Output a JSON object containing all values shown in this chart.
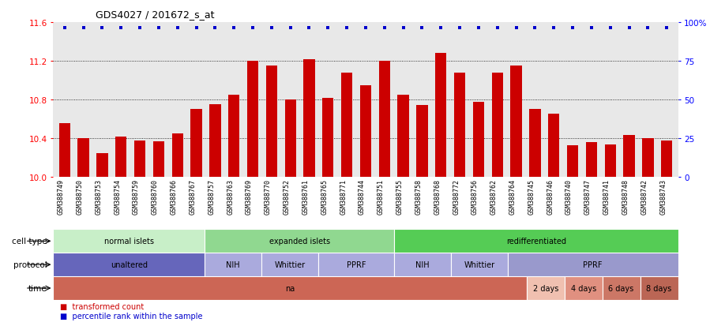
{
  "title": "GDS4027 / 201672_s_at",
  "samples": [
    "GSM388749",
    "GSM388750",
    "GSM388753",
    "GSM388754",
    "GSM388759",
    "GSM388760",
    "GSM388766",
    "GSM388767",
    "GSM388757",
    "GSM388763",
    "GSM388769",
    "GSM388770",
    "GSM388752",
    "GSM388761",
    "GSM388765",
    "GSM388771",
    "GSM388744",
    "GSM388751",
    "GSM388755",
    "GSM388758",
    "GSM388768",
    "GSM388772",
    "GSM388756",
    "GSM388762",
    "GSM388764",
    "GSM388745",
    "GSM388746",
    "GSM388740",
    "GSM388747",
    "GSM388741",
    "GSM388748",
    "GSM388742",
    "GSM388743"
  ],
  "bar_values": [
    10.56,
    10.4,
    10.25,
    10.42,
    10.38,
    10.37,
    10.45,
    10.7,
    10.75,
    10.85,
    11.2,
    11.15,
    10.8,
    11.22,
    10.82,
    11.08,
    10.95,
    11.2,
    10.85,
    10.74,
    11.28,
    11.08,
    10.78,
    11.08,
    11.15,
    10.7,
    10.65,
    10.33,
    10.36,
    10.34,
    10.43,
    10.4,
    10.38
  ],
  "bar_color": "#cc0000",
  "dot_color": "#0000cc",
  "ylim_left": [
    10.0,
    11.6
  ],
  "ylim_right": [
    0,
    100
  ],
  "yticks_left": [
    10.0,
    10.4,
    10.8,
    11.2,
    11.6
  ],
  "yticks_right": [
    0,
    25,
    50,
    75,
    100
  ],
  "ytick_labels_right": [
    "0",
    "25",
    "50",
    "75",
    "100%"
  ],
  "grid_values": [
    10.4,
    10.8,
    11.2
  ],
  "plot_bg_color": "#e8e8e8",
  "cell_type_row": {
    "label": "cell type",
    "groups": [
      {
        "text": "normal islets",
        "start": 0,
        "end": 8,
        "color": "#c8efc8"
      },
      {
        "text": "expanded islets",
        "start": 8,
        "end": 18,
        "color": "#90d890"
      },
      {
        "text": "redifferentiated",
        "start": 18,
        "end": 33,
        "color": "#55cc55"
      }
    ]
  },
  "protocol_row": {
    "label": "protocol",
    "groups": [
      {
        "text": "unaltered",
        "start": 0,
        "end": 8,
        "color": "#6666bb"
      },
      {
        "text": "NIH",
        "start": 8,
        "end": 11,
        "color": "#aaaadd"
      },
      {
        "text": "Whittier",
        "start": 11,
        "end": 14,
        "color": "#aaaadd"
      },
      {
        "text": "PPRF",
        "start": 14,
        "end": 18,
        "color": "#aaaadd"
      },
      {
        "text": "NIH",
        "start": 18,
        "end": 21,
        "color": "#aaaadd"
      },
      {
        "text": "Whittier",
        "start": 21,
        "end": 24,
        "color": "#aaaadd"
      },
      {
        "text": "PPRF",
        "start": 24,
        "end": 33,
        "color": "#9999cc"
      }
    ]
  },
  "time_row": {
    "label": "time",
    "groups": [
      {
        "text": "na",
        "start": 0,
        "end": 25,
        "color": "#cc6655"
      },
      {
        "text": "2 days",
        "start": 25,
        "end": 27,
        "color": "#f0c0b0"
      },
      {
        "text": "4 days",
        "start": 27,
        "end": 29,
        "color": "#e09080"
      },
      {
        "text": "6 days",
        "start": 29,
        "end": 31,
        "color": "#cc7766"
      },
      {
        "text": "8 days",
        "start": 31,
        "end": 33,
        "color": "#bb6655"
      }
    ]
  },
  "legend": [
    {
      "color": "#cc0000",
      "label": "transformed count"
    },
    {
      "color": "#0000cc",
      "label": "percentile rank within the sample"
    }
  ]
}
